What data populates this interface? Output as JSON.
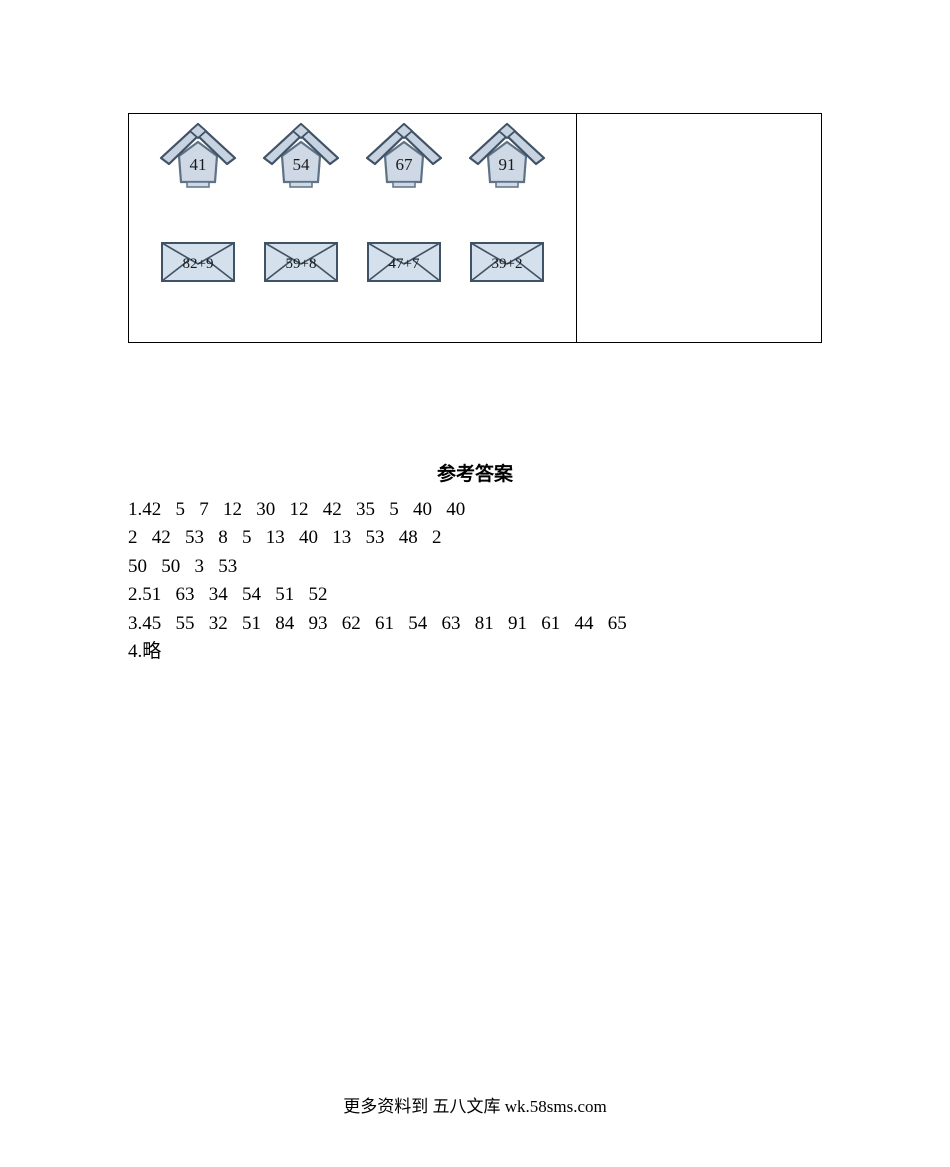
{
  "figure": {
    "houses": [
      {
        "label": "41"
      },
      {
        "label": "54"
      },
      {
        "label": "67"
      },
      {
        "label": "91"
      }
    ],
    "envelopes": [
      {
        "label": "82+9"
      },
      {
        "label": "59+8"
      },
      {
        "label": "47+7"
      },
      {
        "label": "39+2"
      }
    ],
    "colors": {
      "house_fill": "#cfd9e6",
      "house_stroke": "#5f7285",
      "roof_fill": "#c7d3e0",
      "roof_stroke": "#3f5266",
      "env_fill": "#d4e0ec",
      "env_stroke": "#3f5266",
      "text": "#1a1a1a"
    },
    "font": {
      "house_size": 17,
      "env_size": 15
    }
  },
  "answers": {
    "heading": "参考答案",
    "lines": [
      "1.42   5   7   12   30   12   42   35   5   40   40",
      "2   42   53   8   5   13   40   13   53   48   2",
      "50   50   3   53",
      "2.51   63   34   54   51   52",
      "3.45   55   32   51   84   93   62   61   54   63   81   91   61   44   65",
      "4.略"
    ]
  },
  "footer": "更多资料到 五八文库 wk.58sms.com"
}
